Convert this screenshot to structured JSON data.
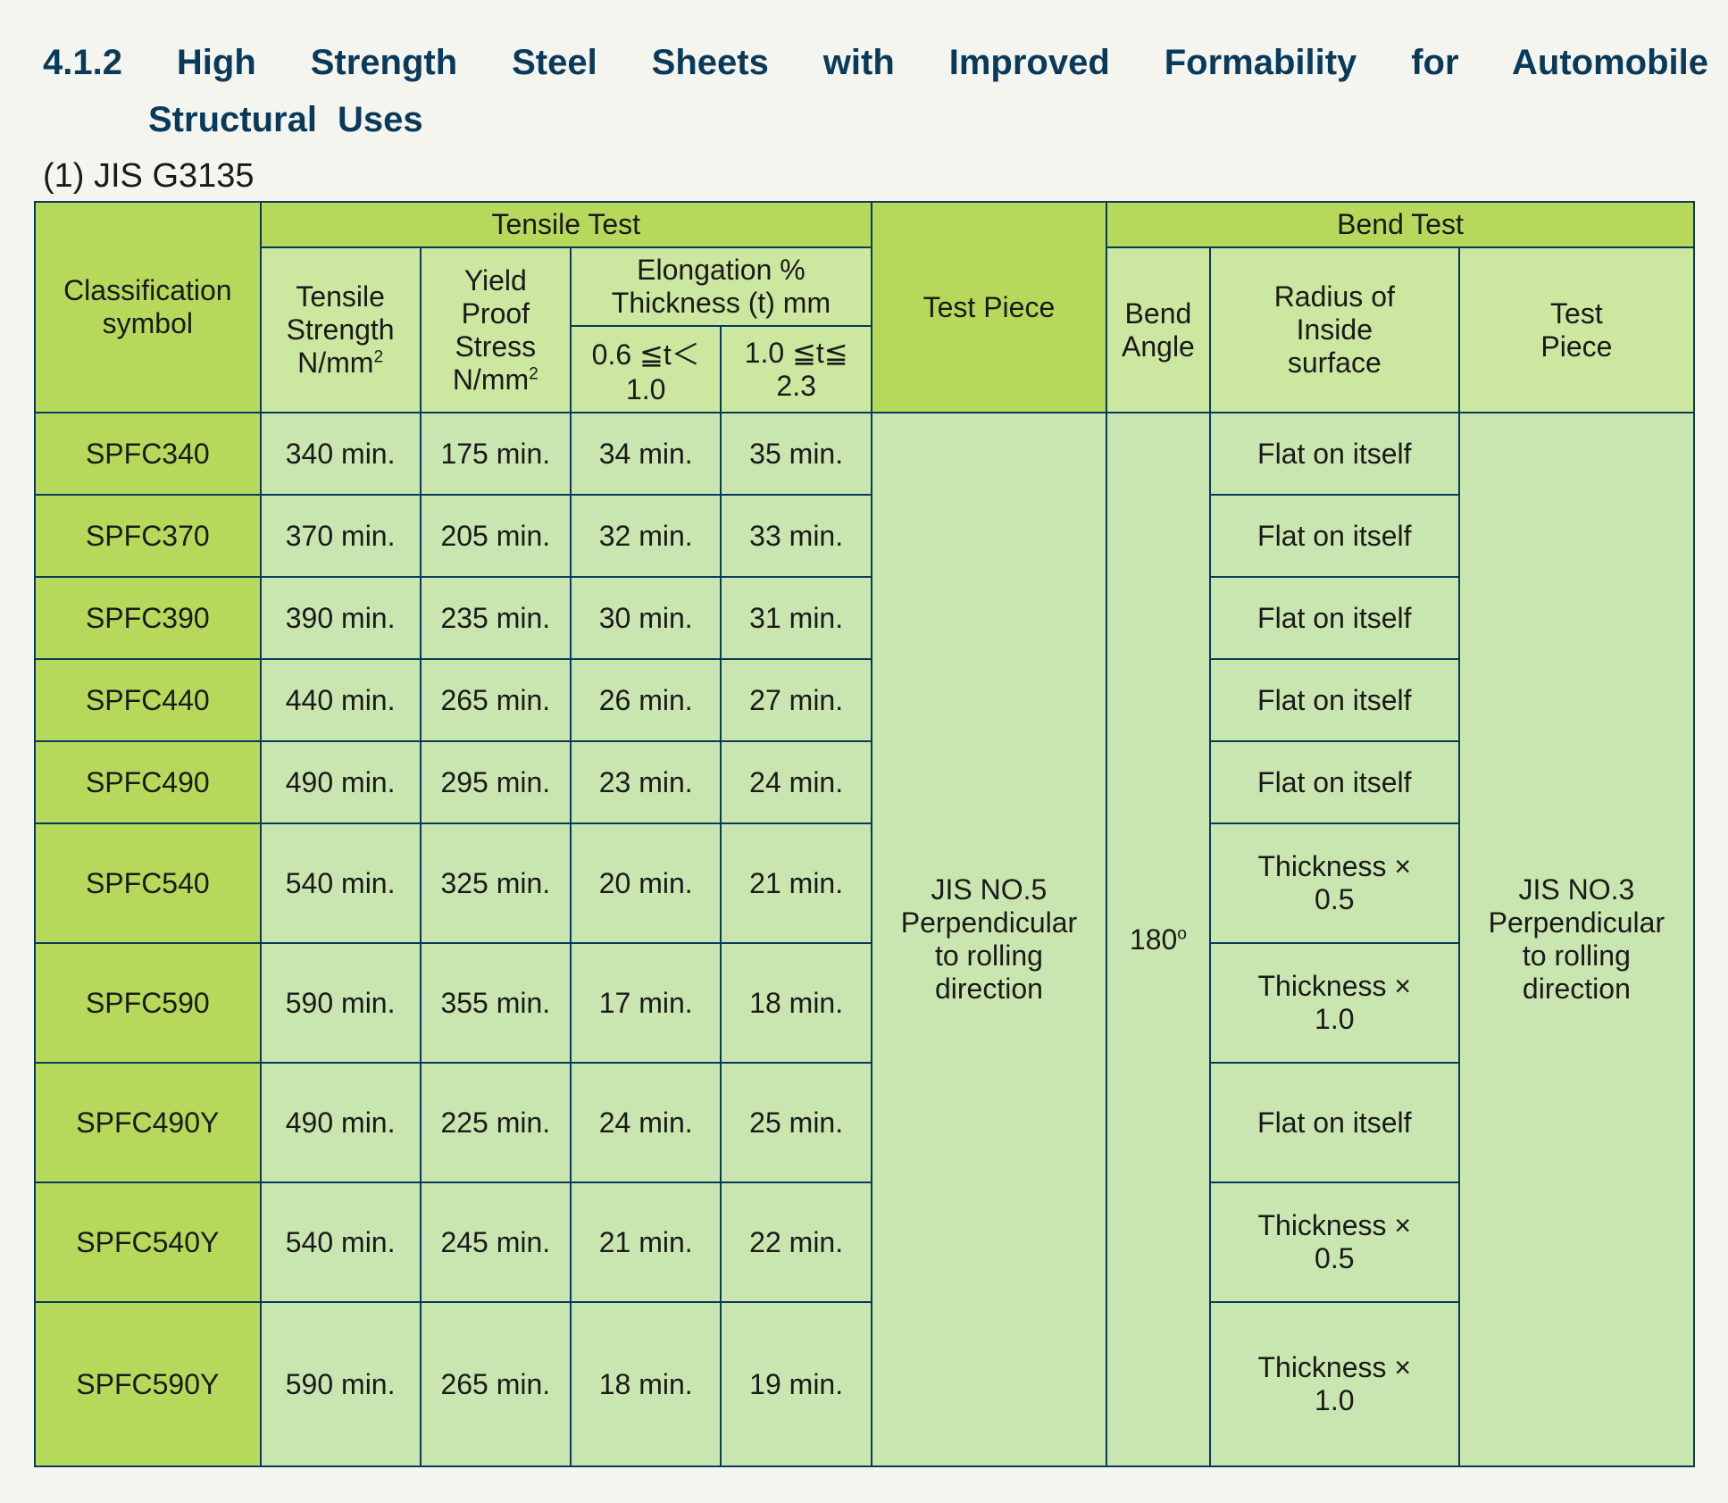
{
  "title_line1": "4.1.2 High Strength Steel Sheets with Improved Formability for Automobile",
  "title_line2": "Structural Uses",
  "subsection": "(1) JIS G3135",
  "colors": {
    "header_strong_bg": "#b6d95c",
    "header_light_bg": "#cce7a0",
    "body_strong_bg": "#b6d95c",
    "body_light_bg": "#cae6b0",
    "border": "#0a3a5a",
    "heading_text": "#0a3a5a",
    "body_text": "#1a1a1a",
    "page_bg": "#f5f5f0"
  },
  "headers": {
    "classification": "Classification\nsymbol",
    "tensile_group": "Tensile Test",
    "tensile_strength": "Tensile\nStrength\nN/mm²",
    "yield_proof": "Yield\nProof\nStress\nN/mm²",
    "elong_group": "Elongation %\nThickness (t) mm",
    "elong_a": "0.6 ≦t＜\n1.0",
    "elong_b": "1.0 ≦t≦\n2.3",
    "test_piece": "Test Piece",
    "bend_group": "Bend Test",
    "bend_angle": "Bend\nAngle",
    "radius_inside": "Radius of\nInside\nsurface",
    "bend_test_piece": "Test\nPiece"
  },
  "shared": {
    "test_piece_tensile": "JIS NO.5\nPerpendicular\nto rolling\ndirection",
    "bend_angle": "180°",
    "test_piece_bend": "JIS NO.3\nPerpendicular\nto rolling\ndirection"
  },
  "rows": [
    {
      "symbol": "SPFC340",
      "tensile": "340 min.",
      "yield": "175 min.",
      "ea": "34 min.",
      "eb": "35 min.",
      "radius": "Flat on itself",
      "h": "short"
    },
    {
      "symbol": "SPFC370",
      "tensile": "370 min.",
      "yield": "205 min.",
      "ea": "32 min.",
      "eb": "33 min.",
      "radius": "Flat on itself",
      "h": "short"
    },
    {
      "symbol": "SPFC390",
      "tensile": "390 min.",
      "yield": "235 min.",
      "ea": "30 min.",
      "eb": "31 min.",
      "radius": "Flat on itself",
      "h": "short"
    },
    {
      "symbol": "SPFC440",
      "tensile": "440 min.",
      "yield": "265 min.",
      "ea": "26 min.",
      "eb": "27 min.",
      "radius": "Flat on itself",
      "h": "short"
    },
    {
      "symbol": "SPFC490",
      "tensile": "490 min.",
      "yield": "295 min.",
      "ea": "23 min.",
      "eb": "24 min.",
      "radius": "Flat on itself",
      "h": "short"
    },
    {
      "symbol": "SPFC540",
      "tensile": "540 min.",
      "yield": "325 min.",
      "ea": "20 min.",
      "eb": "21 min.",
      "radius": "Thickness ×\n0.5",
      "h": "med"
    },
    {
      "symbol": "SPFC590",
      "tensile": "590 min.",
      "yield": "355 min.",
      "ea": "17 min.",
      "eb": "18 min.",
      "radius": "Thickness ×\n1.0",
      "h": "med"
    },
    {
      "symbol": "SPFC490Y",
      "tensile": "490 min.",
      "yield": "225 min.",
      "ea": "24 min.",
      "eb": "25 min.",
      "radius": "Flat on itself",
      "h": "med"
    },
    {
      "symbol": "SPFC540Y",
      "tensile": "540 min.",
      "yield": "245 min.",
      "ea": "21 min.",
      "eb": "22 min.",
      "radius": "Thickness ×\n0.5",
      "h": "med"
    },
    {
      "symbol": "SPFC590Y",
      "tensile": "590 min.",
      "yield": "265 min.",
      "ea": "18 min.",
      "eb": "19 min.",
      "radius": "Thickness ×\n1.0",
      "h": "tall"
    }
  ],
  "fontsize": {
    "title": 40,
    "subsection": 38,
    "table": 32
  }
}
